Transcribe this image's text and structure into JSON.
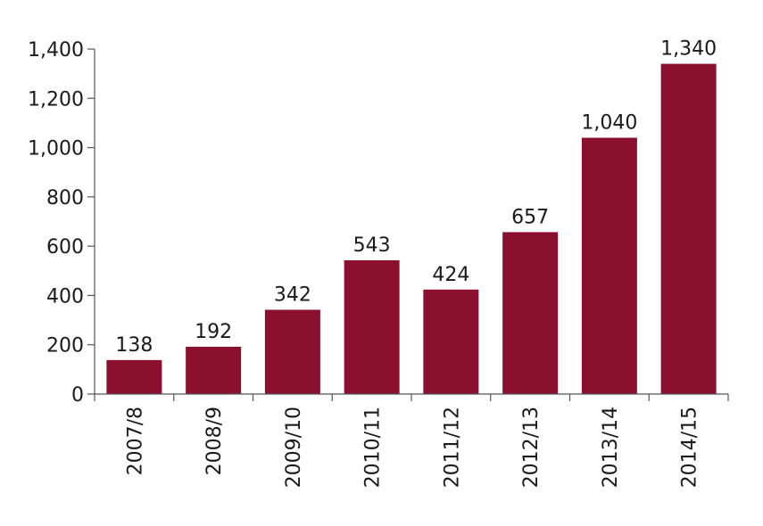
{
  "chart_data": {
    "type": "bar",
    "title": "",
    "xlabel": "",
    "ylabel": "",
    "categories": [
      "2007/8",
      "2008/9",
      "2009/10",
      "2010/11",
      "2011/12",
      "2012/13",
      "2013/14",
      "2014/15"
    ],
    "values": [
      138,
      192,
      342,
      543,
      424,
      657,
      1040,
      1340
    ],
    "value_labels": [
      "138",
      "192",
      "342",
      "543",
      "424",
      "657",
      "1,040",
      "1,340"
    ],
    "ylim": [
      0,
      1400
    ],
    "yticks": [
      0,
      200,
      400,
      600,
      800,
      1000,
      1200,
      1400
    ],
    "ytick_labels": [
      "0",
      "200",
      "400",
      "600",
      "800",
      "1,000",
      "1,200",
      "1,400"
    ],
    "grid": false,
    "legend": "none",
    "bar_color": "#8b1030"
  }
}
